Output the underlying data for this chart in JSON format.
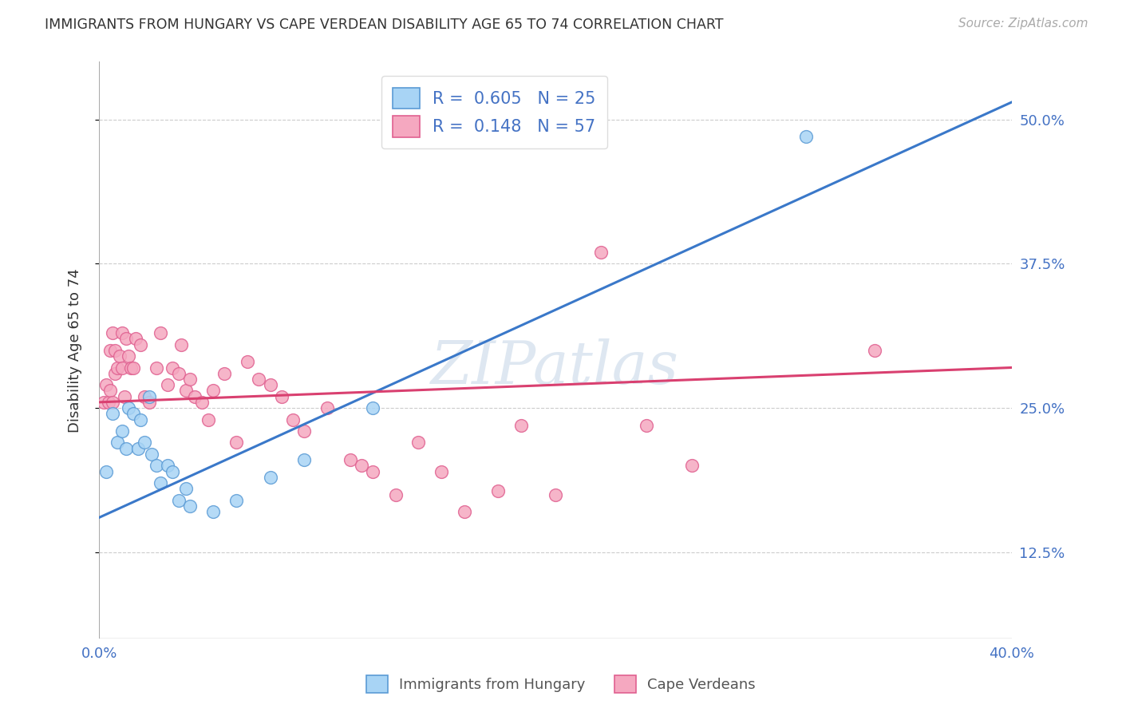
{
  "title": "IMMIGRANTS FROM HUNGARY VS CAPE VERDEAN DISABILITY AGE 65 TO 74 CORRELATION CHART",
  "source": "Source: ZipAtlas.com",
  "ylabel": "Disability Age 65 to 74",
  "xlim": [
    0.0,
    0.4
  ],
  "ylim": [
    0.05,
    0.55
  ],
  "yticks": [
    0.125,
    0.25,
    0.375,
    0.5
  ],
  "ytick_labels": [
    "12.5%",
    "25.0%",
    "37.5%",
    "50.0%"
  ],
  "xticks": [
    0.0,
    0.1,
    0.2,
    0.3,
    0.4
  ],
  "xtick_labels": [
    "0.0%",
    "",
    "",
    "",
    "40.0%"
  ],
  "legend_label1": "Immigrants from Hungary",
  "legend_label2": "Cape Verdeans",
  "color_blue": "#A8D4F5",
  "color_pink": "#F5A8C0",
  "edge_blue": "#5B9BD5",
  "edge_pink": "#E06090",
  "line_color_blue": "#3A78C9",
  "line_color_pink": "#D94070",
  "watermark": "ZIPatlas",
  "blue_scatter_x": [
    0.003,
    0.006,
    0.008,
    0.01,
    0.012,
    0.013,
    0.015,
    0.017,
    0.018,
    0.02,
    0.022,
    0.023,
    0.025,
    0.027,
    0.03,
    0.032,
    0.035,
    0.038,
    0.04,
    0.05,
    0.06,
    0.075,
    0.09,
    0.12,
    0.31
  ],
  "blue_scatter_y": [
    0.195,
    0.245,
    0.22,
    0.23,
    0.215,
    0.25,
    0.245,
    0.215,
    0.24,
    0.22,
    0.26,
    0.21,
    0.2,
    0.185,
    0.2,
    0.195,
    0.17,
    0.18,
    0.165,
    0.16,
    0.17,
    0.19,
    0.205,
    0.25,
    0.485
  ],
  "pink_scatter_x": [
    0.002,
    0.003,
    0.004,
    0.005,
    0.005,
    0.006,
    0.006,
    0.007,
    0.007,
    0.008,
    0.009,
    0.01,
    0.01,
    0.011,
    0.012,
    0.013,
    0.014,
    0.015,
    0.016,
    0.018,
    0.02,
    0.022,
    0.025,
    0.027,
    0.03,
    0.032,
    0.035,
    0.036,
    0.038,
    0.04,
    0.042,
    0.045,
    0.048,
    0.05,
    0.055,
    0.06,
    0.065,
    0.07,
    0.075,
    0.08,
    0.085,
    0.09,
    0.1,
    0.11,
    0.115,
    0.12,
    0.13,
    0.14,
    0.15,
    0.16,
    0.175,
    0.185,
    0.2,
    0.22,
    0.24,
    0.26,
    0.34
  ],
  "pink_scatter_y": [
    0.255,
    0.27,
    0.255,
    0.3,
    0.265,
    0.315,
    0.255,
    0.28,
    0.3,
    0.285,
    0.295,
    0.285,
    0.315,
    0.26,
    0.31,
    0.295,
    0.285,
    0.285,
    0.31,
    0.305,
    0.26,
    0.255,
    0.285,
    0.315,
    0.27,
    0.285,
    0.28,
    0.305,
    0.265,
    0.275,
    0.26,
    0.255,
    0.24,
    0.265,
    0.28,
    0.22,
    0.29,
    0.275,
    0.27,
    0.26,
    0.24,
    0.23,
    0.25,
    0.205,
    0.2,
    0.195,
    0.175,
    0.22,
    0.195,
    0.16,
    0.178,
    0.235,
    0.175,
    0.385,
    0.235,
    0.2,
    0.3
  ],
  "blue_line_x": [
    0.0,
    0.4
  ],
  "blue_line_y": [
    0.155,
    0.515
  ],
  "pink_line_x": [
    0.0,
    0.4
  ],
  "pink_line_y": [
    0.255,
    0.285
  ]
}
